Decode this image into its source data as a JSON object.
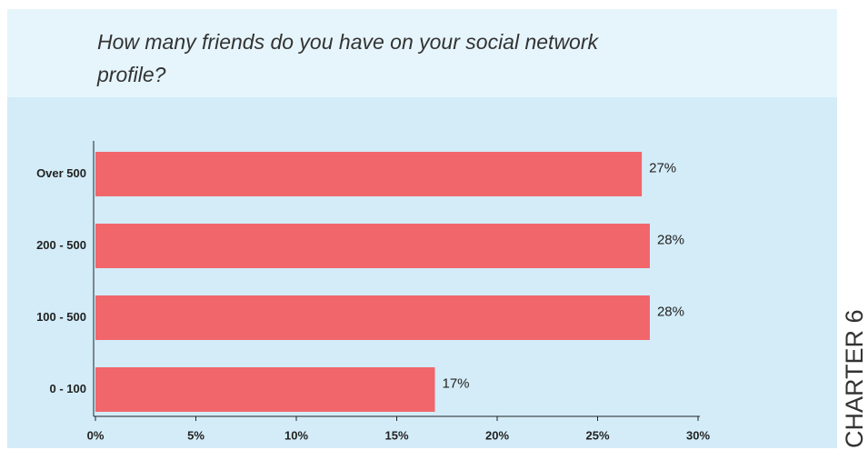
{
  "chapter_label": "CHARTER 6",
  "chart_data": {
    "type": "hbar",
    "title": "How many friends do you have on your social network profile?",
    "categories": [
      "Over 500",
      "200 - 500",
      "100 - 500",
      "0 - 100"
    ],
    "values": [
      27.2,
      27.6,
      27.6,
      16.9
    ],
    "value_labels": [
      "27%",
      "28%",
      "28%",
      "17%"
    ],
    "color": "#f0666b",
    "xlim": [
      0,
      30
    ],
    "xticks": [
      {
        "value": 0,
        "label": "0%"
      },
      {
        "value": 5,
        "label": "5%"
      },
      {
        "value": 10,
        "label": "10%"
      },
      {
        "value": 15,
        "label": "15%"
      },
      {
        "value": 20,
        "label": "20%"
      },
      {
        "value": 25,
        "label": "25%"
      },
      {
        "value": 30,
        "label": "30%"
      }
    ],
    "grid": false
  }
}
